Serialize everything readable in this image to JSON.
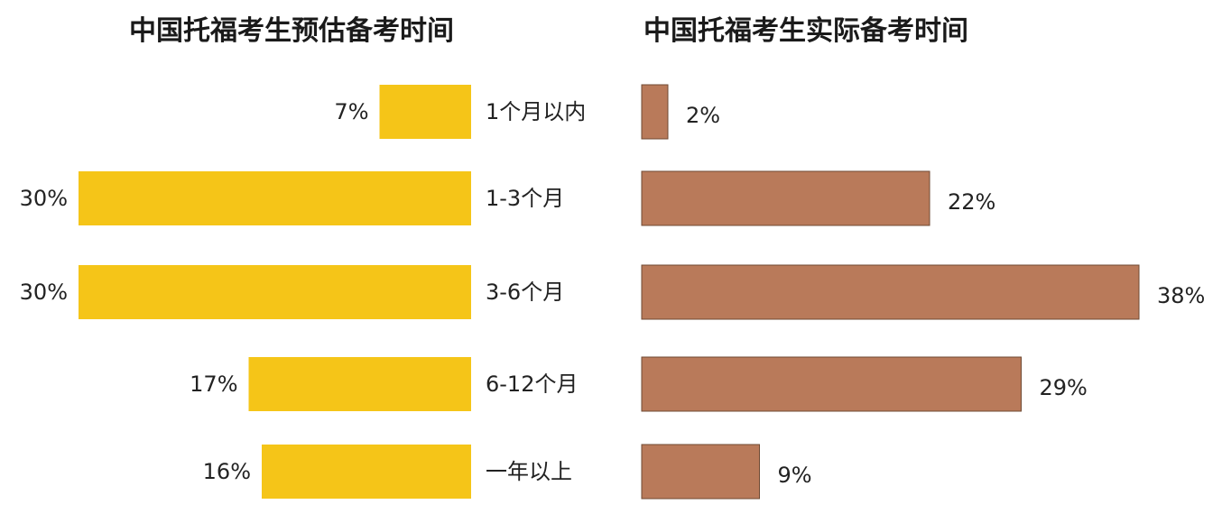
{
  "chart_data": [
    {
      "type": "bar",
      "orientation": "horizontal",
      "direction": "right-to-left",
      "title": "中国托福考生预估备考时间",
      "categories": [
        "1个月以内",
        "1-3个月",
        "3-6个月",
        "6-12个月",
        "一年以上"
      ],
      "values": [
        7,
        30,
        30,
        17,
        16
      ],
      "value_labels": [
        "7%",
        "30%",
        "30%",
        "17%",
        "16%"
      ],
      "unit": "%",
      "color": "#f5c518",
      "grid": false
    },
    {
      "type": "bar",
      "orientation": "horizontal",
      "direction": "left-to-right",
      "title": "中国托福考生实际备考时间",
      "categories": [
        "1个月以内",
        "1-3个月",
        "3-6个月",
        "6-12个月",
        "一年以上"
      ],
      "values": [
        2,
        22,
        38,
        29,
        9
      ],
      "value_labels": [
        "2%",
        "22%",
        "38%",
        "29%",
        "9%"
      ],
      "unit": "%",
      "color": "#b97a5a",
      "grid": false
    }
  ]
}
